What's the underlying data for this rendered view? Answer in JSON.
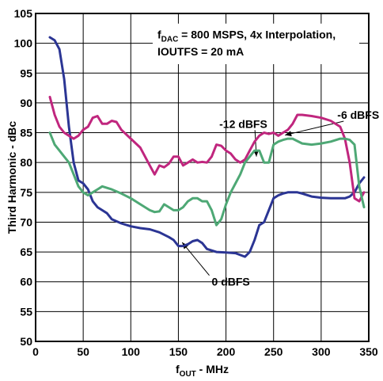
{
  "chart_data": {
    "type": "line",
    "xlabel": {
      "base": "f",
      "sub": "OUT",
      "rest": " - MHz"
    },
    "ylabel": "Third Harmonic - dBc",
    "xlim": [
      0,
      350
    ],
    "ylim": [
      50,
      105
    ],
    "x_ticks": [
      0,
      50,
      100,
      150,
      200,
      250,
      300,
      350
    ],
    "y_ticks": [
      50,
      55,
      60,
      65,
      70,
      75,
      80,
      85,
      90,
      95,
      100,
      105
    ],
    "grid": true,
    "note": {
      "line1_base": "f",
      "line1_sub": "DAC",
      "line1_rest": " = 800 MSPS, 4x Interpolation,",
      "line2": "IOUTFS = 20 mA"
    },
    "colors": {
      "0 dBFS": "#2b3594",
      "-6 dBFS": "#c0267e",
      "-12 dBFS": "#4ea875"
    },
    "series": [
      {
        "name": "0 dBFS",
        "x": [
          15,
          20,
          25,
          30,
          35,
          40,
          45,
          50,
          55,
          60,
          65,
          70,
          75,
          80,
          90,
          100,
          110,
          120,
          130,
          140,
          145,
          150,
          155,
          160,
          165,
          170,
          175,
          180,
          190,
          200,
          210,
          215,
          220,
          225,
          230,
          235,
          240,
          245,
          250,
          255,
          260,
          265,
          270,
          275,
          280,
          290,
          300,
          310,
          320,
          325,
          330,
          335,
          340,
          345
        ],
        "values": [
          101,
          100.5,
          99,
          94,
          86,
          80,
          77,
          76.5,
          75.5,
          73.5,
          72.5,
          72,
          71.5,
          70.5,
          69.8,
          69.3,
          69,
          68.8,
          68.3,
          67.5,
          67,
          66,
          66,
          66.3,
          66.8,
          67,
          66.5,
          65.5,
          65,
          64.9,
          64.8,
          64.5,
          64.2,
          65,
          67,
          69.5,
          70,
          72,
          74,
          74.5,
          74.8,
          75,
          75,
          75,
          74.8,
          74.3,
          74.1,
          74,
          74,
          74,
          74.3,
          75,
          76.5,
          77.5
        ]
      },
      {
        "name": "-6 dBFS",
        "x": [
          15,
          20,
          25,
          30,
          35,
          40,
          45,
          50,
          55,
          60,
          65,
          70,
          75,
          80,
          85,
          90,
          100,
          110,
          115,
          120,
          125,
          130,
          135,
          140,
          145,
          150,
          155,
          160,
          165,
          170,
          175,
          180,
          185,
          190,
          195,
          200,
          205,
          210,
          215,
          220,
          225,
          230,
          235,
          240,
          245,
          250,
          255,
          260,
          265,
          270,
          275,
          280,
          290,
          300,
          310,
          320,
          325,
          330,
          335,
          340,
          345
        ],
        "values": [
          91,
          88,
          86,
          85,
          84.5,
          84,
          84.5,
          85.5,
          86,
          87.5,
          87.8,
          86.5,
          86.5,
          87,
          86.8,
          85.5,
          84,
          82.5,
          81,
          79.5,
          78,
          79.5,
          79.2,
          79.8,
          81,
          81,
          79.5,
          80,
          80.5,
          80,
          80.1,
          80,
          81,
          83,
          82.8,
          82,
          81.5,
          80.5,
          80,
          80.5,
          82,
          83.5,
          84.5,
          85,
          84.8,
          85,
          84.5,
          85,
          85.5,
          86.5,
          88,
          88,
          87.8,
          87.5,
          87,
          86,
          84,
          80,
          74,
          73.5,
          75
        ]
      },
      {
        "name": "-12 dBFS",
        "x": [
          15,
          20,
          25,
          30,
          35,
          40,
          45,
          50,
          55,
          60,
          65,
          70,
          80,
          90,
          100,
          110,
          115,
          120,
          125,
          130,
          135,
          140,
          145,
          150,
          155,
          160,
          165,
          170,
          175,
          180,
          185,
          190,
          195,
          200,
          205,
          210,
          215,
          220,
          225,
          230,
          235,
          240,
          245,
          250,
          255,
          260,
          265,
          270,
          280,
          290,
          300,
          310,
          320,
          325,
          330,
          335,
          340,
          345
        ],
        "values": [
          85,
          83,
          82,
          81,
          80,
          78,
          76,
          75,
          74.5,
          75,
          75.5,
          76,
          75.5,
          74.8,
          74,
          73,
          72.5,
          72,
          71.7,
          71.8,
          73,
          72.5,
          72,
          72,
          72.5,
          73.5,
          74,
          74,
          73.5,
          73.5,
          72,
          69.5,
          70.5,
          73,
          75,
          76.5,
          78,
          80,
          81,
          82,
          82,
          80,
          80,
          83,
          83.5,
          83.8,
          84,
          84,
          83.2,
          83,
          83.2,
          83.5,
          84,
          84,
          83.8,
          83,
          76,
          72.5
        ]
      }
    ],
    "annotations": [
      {
        "text": "-6 dBFS",
        "series": "-6 dBFS",
        "point": [
          265,
          85
        ]
      },
      {
        "text": "-12 dBFS",
        "series": "-12 dBFS",
        "point": [
          230,
          82
        ]
      },
      {
        "text": "0 dBFS",
        "series": "0 dBFS",
        "point": [
          153,
          66
        ]
      }
    ]
  }
}
